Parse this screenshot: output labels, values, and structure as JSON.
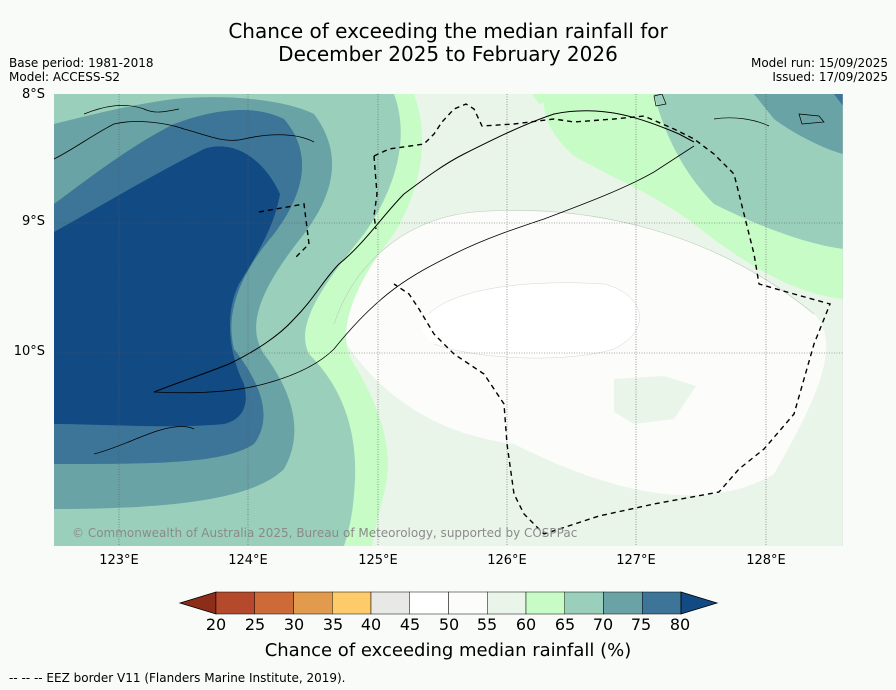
{
  "title_line1": "Chance of exceeding the median rainfall for",
  "title_line2": "December 2025 to February 2026",
  "base_period": "Base period: 1981-2018",
  "model": "Model: ACCESS-S2",
  "model_run": "Model run: 15/09/2025",
  "issued": "Issued: 17/09/2025",
  "lat_labels": [
    "8°S",
    "9°S",
    "10°S"
  ],
  "lon_labels": [
    "123°E",
    "124°E",
    "125°E",
    "126°E",
    "127°E",
    "128°E"
  ],
  "copyright": "© Commonwealth of Australia 2025, Bureau of Meteorology, supported by COSPPac",
  "legend": {
    "ticks": [
      "20",
      "25",
      "30",
      "35",
      "40",
      "45",
      "50",
      "55",
      "60",
      "65",
      "70",
      "75",
      "80"
    ],
    "title": "Chance of exceeding median rainfall (%)",
    "colors": [
      "#8c2d1a",
      "#b44a2b",
      "#cd6b38",
      "#e29a4c",
      "#fdcb6a",
      "#e8e8e6",
      "#ffffff",
      "#fcfcfb",
      "#eaf5ea",
      "#c8fcc7",
      "#9ad0bb",
      "#6aa3a5",
      "#3c7597",
      "#124a83"
    ]
  },
  "footnote": "--  --  -- EEZ border V11 (Flanders Marine Institute, 2019)."
}
